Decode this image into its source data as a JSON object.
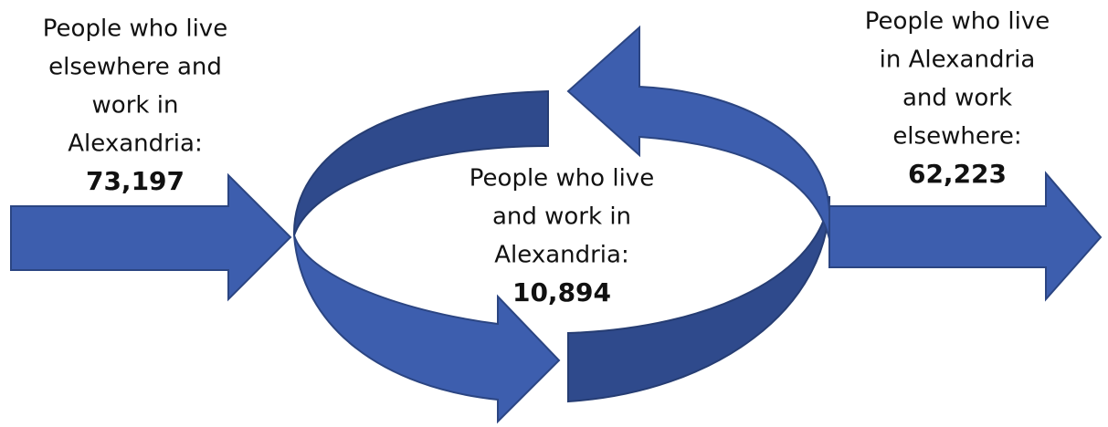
{
  "inbound": {
    "lines": [
      "People who live",
      "elsewhere and",
      "work in",
      "Alexandria:"
    ],
    "value": "73,197"
  },
  "internal": {
    "lines": [
      "People who live",
      "and work in",
      "Alexandria:"
    ],
    "value": "10,894"
  },
  "outbound": {
    "lines": [
      "People who live",
      "in Alexandria",
      "and work",
      "elsewhere:"
    ],
    "value": "62,223"
  }
}
